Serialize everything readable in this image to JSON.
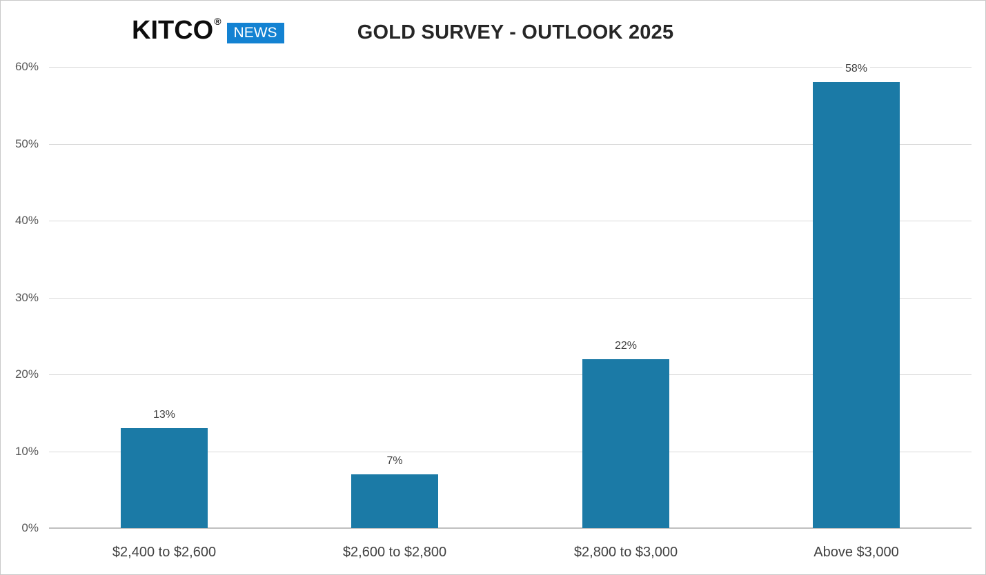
{
  "page": {
    "background": "#ffffff",
    "border_color": "#c9c9c9"
  },
  "header": {
    "logo": {
      "brand": "KITCO",
      "registered_mark": "®",
      "badge": "NEWS",
      "badge_color": "#1382d2",
      "badge_text_color": "#ffffff"
    },
    "title": "GOLD SURVEY - OUTLOOK 2025"
  },
  "chart_data": {
    "type": "bar",
    "title": "GOLD SURVEY - OUTLOOK 2025",
    "categories": [
      "$2,400 to $2,600",
      "$2,600 to $2,800",
      "$2,800 to $3,000",
      "Above $3,000"
    ],
    "values": [
      13,
      7,
      22,
      58
    ],
    "value_labels": [
      "13%",
      "7%",
      "22%",
      "58%"
    ],
    "yticks": [
      0,
      10,
      20,
      30,
      40,
      50,
      60
    ],
    "ytick_labels": [
      "0%",
      "10%",
      "20%",
      "30%",
      "40%",
      "50%",
      "60%"
    ],
    "ylim": [
      0,
      60
    ],
    "xlabel": "",
    "ylabel": "",
    "grid": "horizontal",
    "legend": "none",
    "colors": {
      "bar": "#1b7aa6",
      "gridline": "#d9d9d9",
      "axis_line": "#bfbfbf",
      "tick_label": "#595959",
      "category_label": "#404040",
      "value_label": "#404040",
      "title": "#262626"
    }
  }
}
